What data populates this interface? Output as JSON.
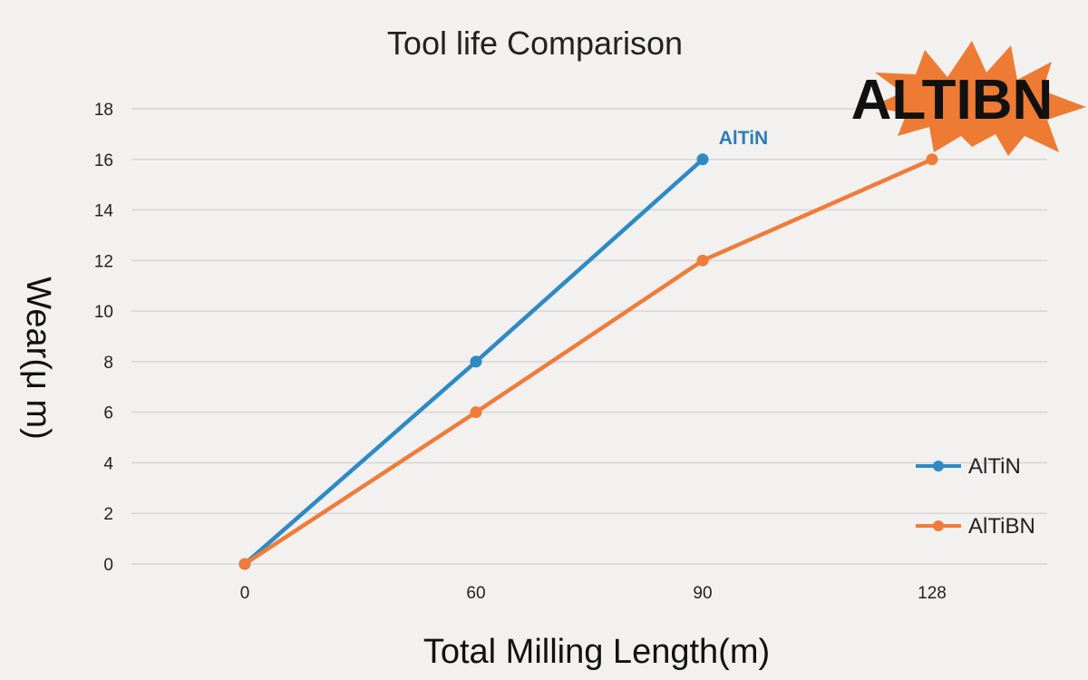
{
  "chart_data": {
    "type": "line",
    "title": "Tool life Comparison",
    "xlabel": "Total Milling Length(m)",
    "ylabel": "Wear(μ m)",
    "categories": [
      "0",
      "60",
      "90",
      "128"
    ],
    "ylim": [
      0,
      18
    ],
    "yticks": [
      "0",
      "2",
      "4",
      "6",
      "8",
      "10",
      "12",
      "14",
      "16",
      "18"
    ],
    "grid": true,
    "legend_position": "bottom-right",
    "series": [
      {
        "name": "AlTiN",
        "color": "#2e8ac4",
        "values": [
          0,
          8,
          16,
          null
        ]
      },
      {
        "name": "AlTiBN",
        "color": "#ef7c3a",
        "values": [
          0,
          6,
          12,
          16
        ]
      }
    ],
    "annotations": [
      {
        "text": "AlTiN",
        "color": "#2e7db7",
        "x": "90",
        "y": 16
      }
    ],
    "badge": {
      "text": "ALTIBN",
      "color": "#ee7b33"
    }
  }
}
